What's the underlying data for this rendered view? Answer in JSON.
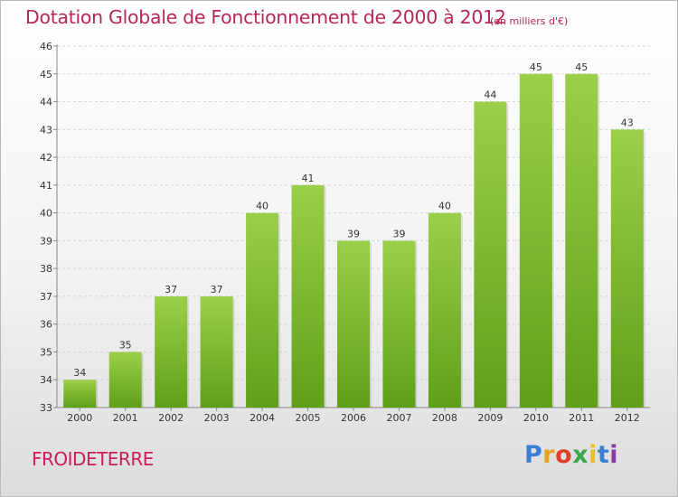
{
  "title": "Dotation Globale de Fonctionnement de 2000 à 2012",
  "subtitle": "(en milliers d'€)",
  "place": "FROIDETERRE",
  "logo": {
    "text": "Proxiti",
    "colors": [
      "#3a7fd4",
      "#e8a020",
      "#e0402a",
      "#3aa84a",
      "#e8c020",
      "#3a7fd4",
      "#8a3aa0"
    ]
  },
  "colors": {
    "title": "#b8265a",
    "bar_top": "#9ccf4a",
    "bar_bottom": "#5fa018"
  },
  "chart_data": {
    "type": "bar",
    "categories": [
      "2000",
      "2001",
      "2002",
      "2003",
      "2004",
      "2005",
      "2006",
      "2007",
      "2008",
      "2009",
      "2010",
      "2011",
      "2012"
    ],
    "values": [
      34,
      35,
      37,
      37,
      40,
      41,
      39,
      39,
      40,
      44,
      45,
      45,
      43
    ],
    "data_labels": [
      "34",
      "35",
      "37",
      "37",
      "40",
      "41",
      "39",
      "39",
      "40",
      "44",
      "45",
      "45",
      "43"
    ],
    "ylim": [
      33,
      46
    ],
    "yticks": [
      33,
      34,
      35,
      36,
      37,
      38,
      39,
      40,
      41,
      42,
      43,
      44,
      45,
      46
    ],
    "ytick_labels": [
      "33",
      "34",
      "35",
      "36",
      "37",
      "38",
      "39",
      "40",
      "41",
      "42",
      "43",
      "44",
      "45",
      "46"
    ],
    "grid": true
  }
}
